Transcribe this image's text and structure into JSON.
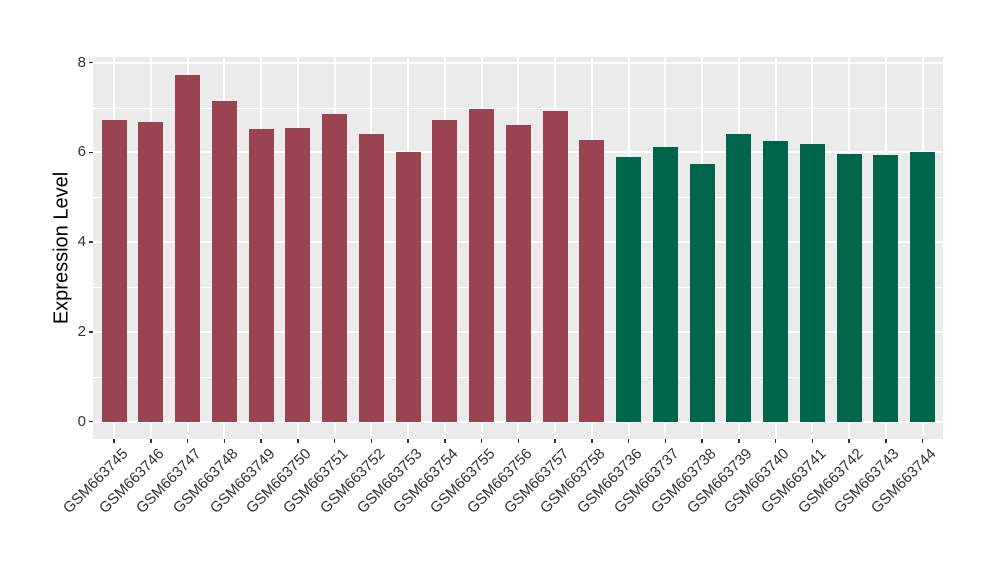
{
  "chart_data": {
    "type": "bar",
    "title": "",
    "xlabel": "",
    "ylabel": "Expression Level",
    "ylim": [
      0,
      8.13
    ],
    "yticks": [
      "0",
      "2",
      "4",
      "6",
      "8"
    ],
    "ytick_values": [
      0,
      2,
      4,
      6,
      8
    ],
    "minor_gridline_values": [
      1,
      3,
      5,
      7
    ],
    "grid": "on",
    "legend": "none",
    "plot_background": "#EBEBEB",
    "gridline_color": "#FFFFFF",
    "axis_text_color": "#333333",
    "axis_title_color": "#000000",
    "groups": {
      "group1": "#9A4452",
      "group2": "#00664B"
    },
    "categories": [
      "GSM663745",
      "GSM663746",
      "GSM663747",
      "GSM663748",
      "GSM663749",
      "GSM663750",
      "GSM663751",
      "GSM663752",
      "GSM663753",
      "GSM663754",
      "GSM663755",
      "GSM663756",
      "GSM663757",
      "GSM663758",
      "GSM663736",
      "GSM663737",
      "GSM663738",
      "GSM663739",
      "GSM663740",
      "GSM663741",
      "GSM663742",
      "GSM663743",
      "GSM663744"
    ],
    "values": [
      6.72,
      6.67,
      7.72,
      7.15,
      6.52,
      6.55,
      6.85,
      6.42,
      6.01,
      6.72,
      6.98,
      6.62,
      6.92,
      6.27,
      5.91,
      6.13,
      5.74,
      6.42,
      6.25,
      6.2,
      5.96,
      5.94,
      6.0
    ],
    "bar_group_keys": [
      "group1",
      "group1",
      "group1",
      "group1",
      "group1",
      "group1",
      "group1",
      "group1",
      "group1",
      "group1",
      "group1",
      "group1",
      "group1",
      "group1",
      "group2",
      "group2",
      "group2",
      "group2",
      "group2",
      "group2",
      "group2",
      "group2",
      "group2"
    ],
    "series": [
      {
        "name": "GSM663745-GSM663758",
        "color": "#9A4452",
        "categories": [
          "GSM663745",
          "GSM663746",
          "GSM663747",
          "GSM663748",
          "GSM663749",
          "GSM663750",
          "GSM663751",
          "GSM663752",
          "GSM663753",
          "GSM663754",
          "GSM663755",
          "GSM663756",
          "GSM663757",
          "GSM663758"
        ],
        "values": [
          6.72,
          6.67,
          7.72,
          7.15,
          6.52,
          6.55,
          6.85,
          6.42,
          6.01,
          6.72,
          6.98,
          6.62,
          6.92,
          6.27
        ]
      },
      {
        "name": "GSM663736-GSM663744",
        "color": "#00664B",
        "categories": [
          "GSM663736",
          "GSM663737",
          "GSM663738",
          "GSM663739",
          "GSM663740",
          "GSM663741",
          "GSM663742",
          "GSM663743",
          "GSM663744"
        ],
        "values": [
          5.91,
          6.13,
          5.74,
          6.42,
          6.25,
          6.2,
          5.96,
          5.94,
          6.0
        ]
      }
    ]
  }
}
